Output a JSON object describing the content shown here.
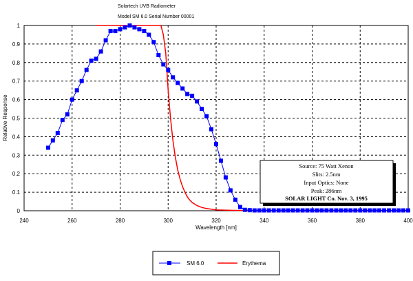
{
  "chart_data": {
    "type": "line",
    "title": "Solartech UVB Radiometer",
    "subtitle": "Model SM 6.0 Serial Number 00001",
    "xlabel": "Wavelength [nm]",
    "ylabel": "Relative Response",
    "xlim": [
      240,
      400
    ],
    "ylim": [
      0,
      1
    ],
    "x_ticks": [
      "240",
      "260",
      "280",
      "300",
      "320",
      "340",
      "360",
      "380",
      "400"
    ],
    "y_ticks": [
      "0",
      "0.1",
      "0.2",
      "0.3",
      "0.4",
      "0.5",
      "0.6",
      "0.7",
      "0.8",
      "0.9",
      "1"
    ],
    "grid": true,
    "legend_position": "bottom-center",
    "annotation": [
      "Source: 75 Watt Xenon",
      "Slits: 2.5nm",
      "Input Optics: None",
      "Peak: 286nm",
      "SOLAR LIGHT Co. Nov. 3, 1995"
    ],
    "series": [
      {
        "name": "SM 6.0",
        "color": "#0000ff",
        "marker": "square",
        "x": [
          250,
          252,
          254,
          256,
          258,
          260,
          262,
          264,
          266,
          268,
          270,
          272,
          274,
          276,
          278,
          280,
          282,
          284,
          286,
          288,
          290,
          292,
          294,
          296,
          298,
          300,
          302,
          304,
          306,
          308,
          310,
          312,
          314,
          316,
          318,
          320,
          322,
          324,
          326,
          328,
          330,
          332,
          334,
          336,
          338,
          340,
          342,
          344,
          346,
          348,
          350,
          352,
          354,
          356,
          358,
          360,
          362,
          364,
          366,
          368,
          370,
          372,
          374,
          376,
          378,
          380,
          382,
          384,
          386,
          388,
          390,
          392,
          394,
          396,
          398,
          400
        ],
        "values": [
          0.34,
          0.38,
          0.42,
          0.49,
          0.52,
          0.6,
          0.65,
          0.7,
          0.76,
          0.81,
          0.82,
          0.86,
          0.92,
          0.97,
          0.97,
          0.98,
          0.99,
          1.0,
          0.99,
          0.98,
          0.97,
          0.95,
          0.91,
          0.84,
          0.79,
          0.76,
          0.72,
          0.69,
          0.66,
          0.63,
          0.62,
          0.59,
          0.55,
          0.51,
          0.44,
          0.36,
          0.27,
          0.18,
          0.11,
          0.06,
          0.02,
          0.005,
          0.003,
          0.002,
          0.002,
          0.002,
          0.002,
          0.002,
          0.002,
          0.002,
          0.002,
          0.002,
          0.002,
          0.002,
          0.002,
          0.002,
          0.002,
          0.002,
          0.002,
          0.002,
          0.002,
          0.002,
          0.002,
          0.002,
          0.002,
          0.002,
          0.002,
          0.002,
          0.002,
          0.002,
          0.002,
          0.002,
          0.002,
          0.002,
          0.002,
          0.002
        ]
      },
      {
        "name": "Erythema",
        "color": "#ff0000",
        "marker": "none",
        "x": [
          270,
          280,
          290,
          297,
          298,
          299,
          300,
          301,
          302,
          303,
          304,
          305,
          306,
          307,
          308,
          309,
          310,
          312,
          314,
          316,
          318,
          320,
          325,
          330,
          340,
          350,
          360,
          370,
          380,
          390,
          400
        ],
        "values": [
          1.0,
          1.0,
          1.0,
          1.0,
          0.95,
          0.85,
          0.65,
          0.5,
          0.38,
          0.29,
          0.22,
          0.17,
          0.13,
          0.1,
          0.075,
          0.058,
          0.045,
          0.028,
          0.018,
          0.012,
          0.008,
          0.005,
          0.003,
          0.0015,
          0.001,
          0.0008,
          0.0006,
          0.0005,
          0.0004,
          0.0003,
          0.0002
        ]
      }
    ]
  }
}
